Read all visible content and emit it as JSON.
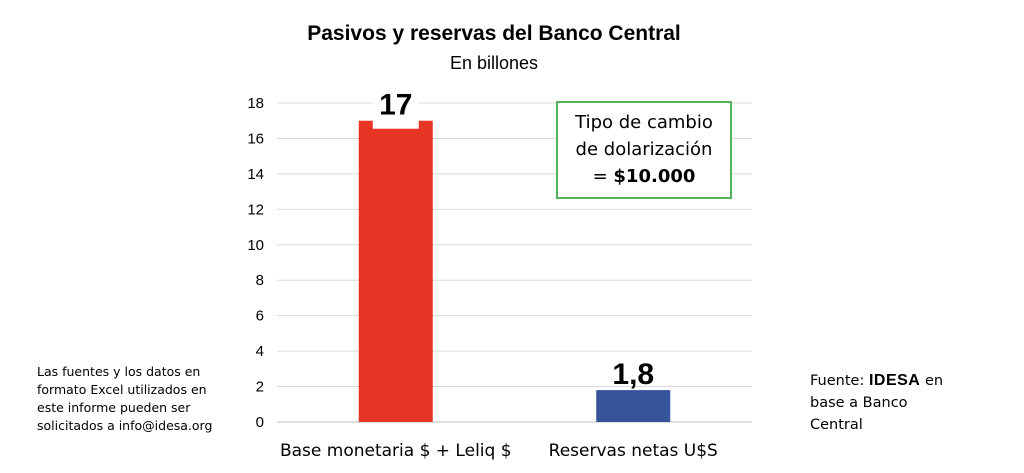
{
  "chart_data": {
    "type": "bar",
    "title": "Pasivos y reservas del Banco Central",
    "subtitle": "En billones",
    "categories": [
      "Base monetaria $ + Leliq $",
      "Reservas netas U$S"
    ],
    "values": [
      17,
      1.8
    ],
    "data_labels": [
      "17",
      "1,8"
    ],
    "bar_colors": [
      "#e83424",
      "#35549a"
    ],
    "ylim": [
      0,
      18
    ],
    "yticks": [
      0,
      2,
      4,
      6,
      8,
      10,
      12,
      14,
      16,
      18
    ],
    "grid": true,
    "legend": "none"
  },
  "annotation": {
    "line1": "Tipo de cambio",
    "line2": "de dolarización",
    "line3_prefix": "= ",
    "line3_value": "$10.000",
    "border_color": "#55b55b"
  },
  "note": {
    "line1": "Las fuentes y los datos en",
    "line2": "formato Excel utilizados en",
    "line3": "este informe pueden ser",
    "line4": "solicitados a info@idesa.org"
  },
  "source": {
    "prefix": "Fuente: ",
    "brand": "IDESA",
    "suffix": " en",
    "line2": "base a Banco",
    "line3": "Central"
  }
}
